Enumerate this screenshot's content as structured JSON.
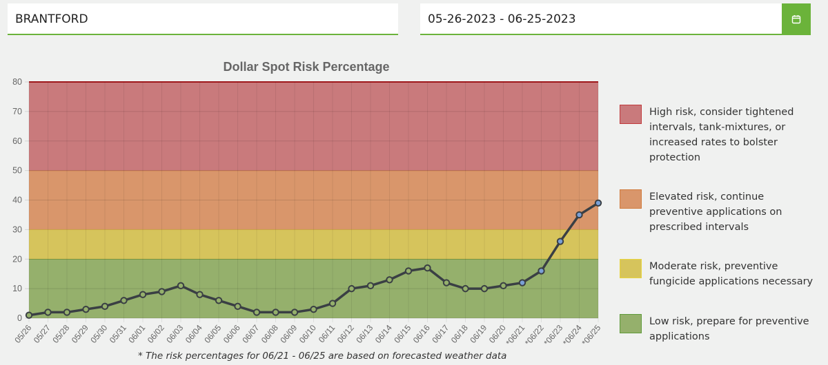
{
  "location_value": "BRANTFORD",
  "date_range_value": "05-26-2023 - 06-25-2023",
  "calendar_icon": "calendar-icon",
  "colors": {
    "accent": "#6bb33a",
    "high": "#c97a7c",
    "elevated": "#d9966b",
    "moderate": "#d6c45c",
    "low": "#95b06c",
    "line": "#3a3f44",
    "forecast_point": "#7aa0d6"
  },
  "legend": [
    {
      "label": "High risk, consider tightened intervals, tank-mixtures, or increased rates to bolster protection",
      "color": "#c97a7c",
      "border": "#c0393c"
    },
    {
      "label": "Elevated risk, continue preventive applications on prescribed intervals",
      "color": "#d9966b",
      "border": "#d07a3c"
    },
    {
      "label": "Moderate risk, preventive fungicide applications necessary",
      "color": "#d6c45c",
      "border": "#e8d43c"
    },
    {
      "label": "Low risk, prepare for preventive applications",
      "color": "#95b06c",
      "border": "#5f9a3a"
    }
  ],
  "footnote": "* The risk percentages for 06/21 - 06/25 are based on forecasted weather data",
  "chart_data": {
    "type": "line",
    "title": "Dollar Spot Risk Percentage",
    "ylim": [
      0,
      80
    ],
    "yticks": [
      0,
      10,
      20,
      30,
      40,
      50,
      60,
      70,
      80
    ],
    "bands": [
      {
        "from": 0,
        "to": 20,
        "color": "#95b06c"
      },
      {
        "from": 20,
        "to": 30,
        "color": "#d6c45c"
      },
      {
        "from": 30,
        "to": 50,
        "color": "#d9966b"
      },
      {
        "from": 50,
        "to": 80,
        "color": "#c97a7c"
      }
    ],
    "categories": [
      "05/26",
      "05/27",
      "05/28",
      "05/29",
      "05/30",
      "05/31",
      "06/01",
      "06/02",
      "06/03",
      "06/04",
      "06/05",
      "06/06",
      "06/07",
      "06/08",
      "06/09",
      "06/10",
      "06/11",
      "06/12",
      "06/13",
      "06/14",
      "06/15",
      "06/16",
      "06/17",
      "06/18",
      "06/19",
      "06/20",
      "06/21",
      "06/22",
      "06/23",
      "06/24",
      "06/25"
    ],
    "tick_labels": [
      "05/26",
      "05/27",
      "05/28",
      "05/29",
      "05/30",
      "05/31",
      "06/01",
      "06/02",
      "06/03",
      "06/04",
      "06/05",
      "06/06",
      "06/07",
      "06/08",
      "06/09",
      "06/10",
      "06/11",
      "06/12",
      "06/13",
      "06/14",
      "06/15",
      "06/16",
      "06/17",
      "06/18",
      "06/19",
      "06/20",
      "*06/21",
      "*06/22",
      "*06/23",
      "*06/24",
      "*06/25"
    ],
    "values": [
      1,
      2,
      2,
      3,
      4,
      6,
      8,
      9,
      11,
      8,
      6,
      4,
      2,
      2,
      2,
      3,
      5,
      10,
      11,
      13,
      16,
      17,
      12,
      10,
      10,
      11,
      12,
      16,
      26,
      35,
      39
    ],
    "forecast_start_index": 26,
    "grid": true
  }
}
